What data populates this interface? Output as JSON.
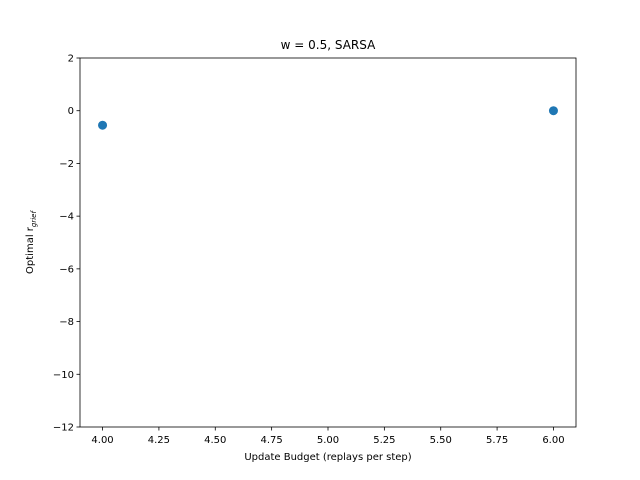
{
  "chart_data": {
    "type": "scatter",
    "title": "w = 0.5, SARSA",
    "xlabel": "Update Budget (replays per step)",
    "ylabel_main": "Optimal r",
    "ylabel_sub": "grief",
    "xlim": [
      3.9,
      6.1
    ],
    "ylim": [
      -12,
      2
    ],
    "xticks": [
      4.0,
      4.25,
      4.5,
      4.75,
      5.0,
      5.25,
      5.5,
      5.75,
      6.0
    ],
    "xtick_labels": [
      "4.00",
      "4.25",
      "4.50",
      "4.75",
      "5.00",
      "5.25",
      "5.50",
      "5.75",
      "6.00"
    ],
    "yticks": [
      2,
      0,
      -2,
      -4,
      -6,
      -8,
      -10,
      -12
    ],
    "ytick_labels": [
      "2",
      "0",
      "−2",
      "−4",
      "−6",
      "−8",
      "−10",
      "−12"
    ],
    "grid": false,
    "series": [
      {
        "color": "#1f77b4",
        "points": [
          {
            "x": 4.0,
            "y": -0.55
          },
          {
            "x": 6.0,
            "y": 0.0
          }
        ]
      }
    ]
  }
}
